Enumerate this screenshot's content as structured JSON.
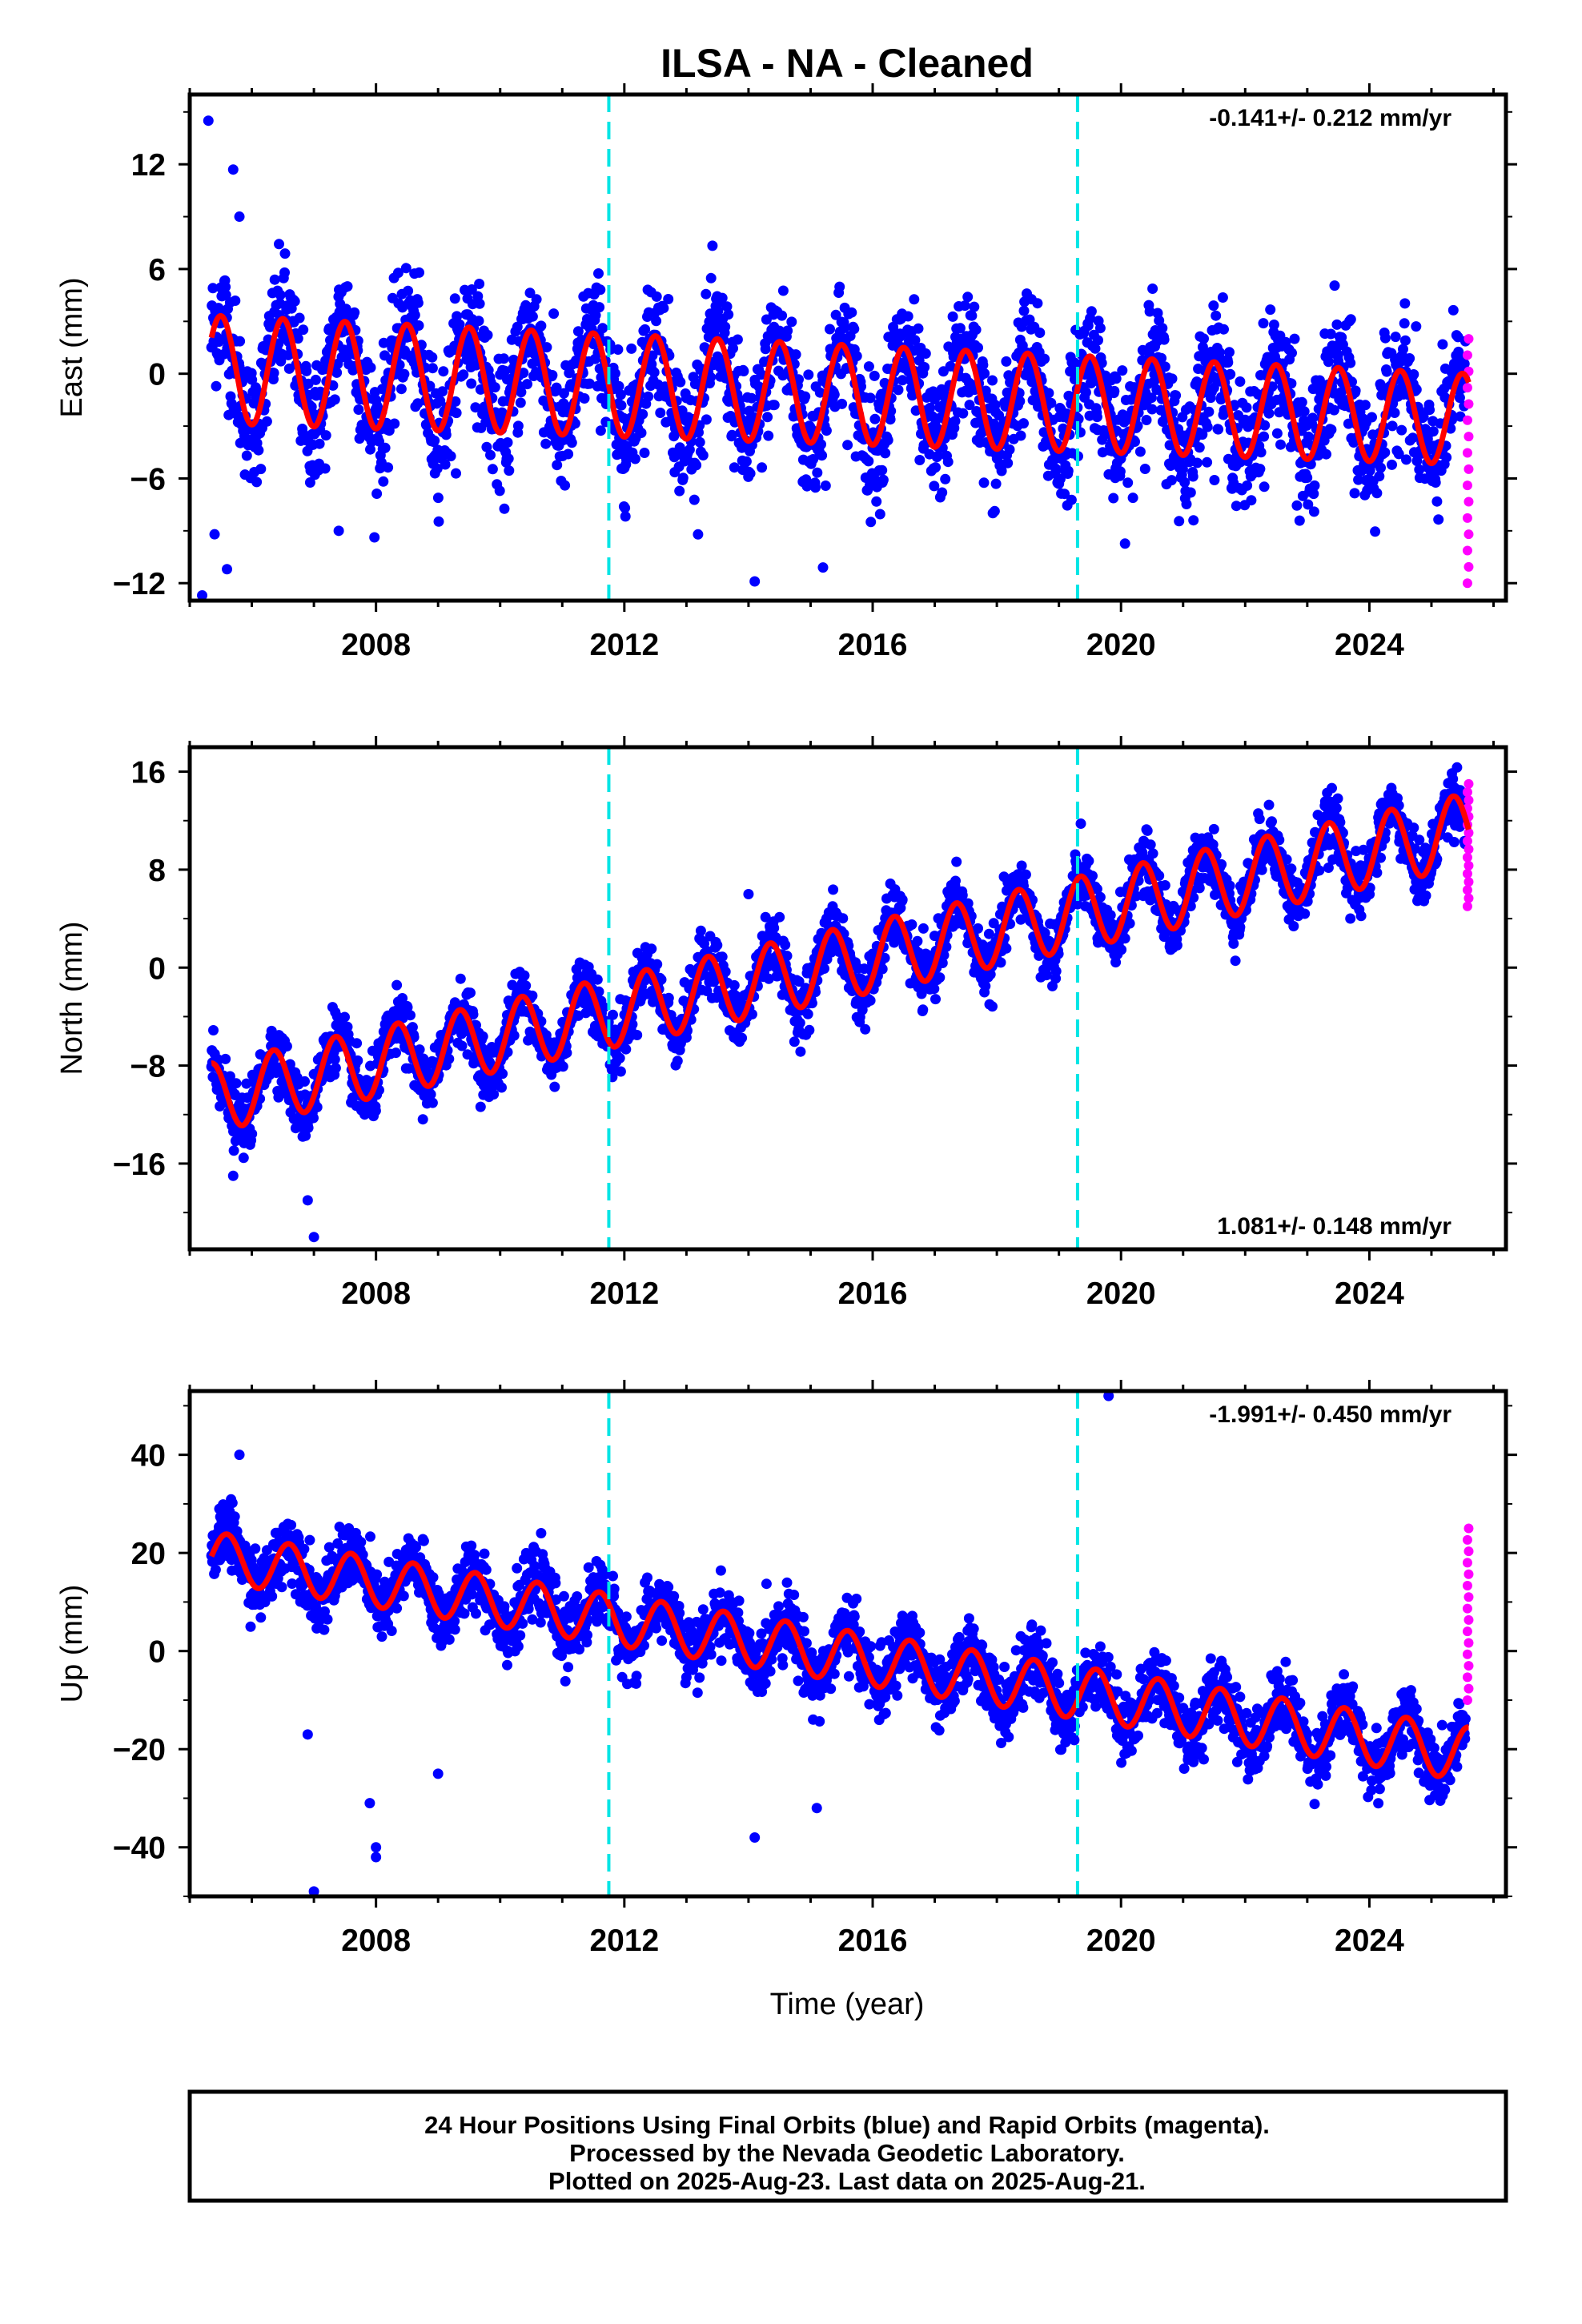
{
  "title": "ILSA  - NA - Cleaned",
  "xlabel": "Time (year)",
  "x_ticks": [
    "2008",
    "2012",
    "2016",
    "2020",
    "2024"
  ],
  "footer": [
    "24 Hour Positions Using Final Orbits (blue) and Rapid Orbits (magenta).",
    "Processed by the Nevada Geodetic Laboratory.",
    "Plotted on 2025-Aug-23. Last data on 2025-Aug-21."
  ],
  "colors": {
    "final": "#0000ff",
    "rapid": "#ff00ff",
    "model": "#ff0000",
    "offset": "#00e5e5"
  },
  "chart_data": [
    {
      "type": "scatter",
      "ylabel": "East (mm)",
      "rate": "-0.141+/- 0.212 mm/yr",
      "xlim": [
        2005.0,
        2026.2
      ],
      "ylim": [
        -13.0,
        16.0
      ],
      "yticks": [
        12,
        6,
        0,
        -6,
        -12
      ],
      "offset_lines": [
        2011.75,
        2019.3
      ],
      "model": {
        "slope": -0.141,
        "intercept": 0.3,
        "amp": 3.1,
        "amp_end": 2.6,
        "phase": 0.25
      },
      "scatter": 3.0,
      "outliers": [
        [
          2005.3,
          14.5
        ],
        [
          2005.7,
          11.7
        ],
        [
          2005.8,
          9.0
        ],
        [
          2005.2,
          -12.7
        ],
        [
          2005.4,
          -9.2
        ],
        [
          2005.6,
          -11.2
        ],
        [
          2007.4,
          -9.0
        ],
        [
          2014.1,
          -11.9
        ],
        [
          2015.2,
          -11.1
        ]
      ],
      "rapid_range": [
        -12.0,
        2.0
      ],
      "series": [
        {
          "name": "Final Orbits (blue)"
        },
        {
          "name": "Rapid Orbits (magenta)"
        }
      ]
    },
    {
      "type": "scatter",
      "ylabel": "North (mm)",
      "rate": "1.081+/- 0.148 mm/yr",
      "xlim": [
        2005.0,
        2026.2
      ],
      "ylim": [
        -23.0,
        18.0
      ],
      "yticks": [
        16,
        8,
        0,
        -8,
        -16
      ],
      "offset_lines": [
        2011.75,
        2019.3
      ],
      "model": {
        "slope": 1.081,
        "intercept": -11.0,
        "amp": 2.8,
        "amp_end": 3.0,
        "phase": 0.1
      },
      "scatter": 2.0,
      "outliers": [
        [
          2005.7,
          -17.0
        ],
        [
          2006.9,
          -19.0
        ],
        [
          2007.0,
          -22.0
        ],
        [
          2014.0,
          6.0
        ]
      ],
      "rapid_range": [
        5.0,
        15.0
      ],
      "series": [
        {
          "name": "Final Orbits (blue)"
        },
        {
          "name": "Rapid Orbits (magenta)"
        }
      ]
    },
    {
      "type": "scatter",
      "ylabel": "Up (mm)",
      "rate": "-1.991+/- 0.450 mm/yr",
      "xlim": [
        2005.0,
        2026.2
      ],
      "ylim": [
        -50.0,
        53.0
      ],
      "yticks": [
        40,
        20,
        0,
        -20,
        -40
      ],
      "offset_lines": [
        2011.75,
        2019.3
      ],
      "model": {
        "slope": -1.991,
        "intercept": 20.0,
        "amp": 5.0,
        "amp_end": 5.5,
        "phase": 0.35
      },
      "scatter": 5.5,
      "outliers": [
        [
          2005.8,
          40.0
        ],
        [
          2006.9,
          -17.0
        ],
        [
          2007.0,
          -49.0
        ],
        [
          2007.9,
          -31.0
        ],
        [
          2008.0,
          -40.0
        ],
        [
          2008.0,
          -42.0
        ],
        [
          2009.0,
          -25.0
        ],
        [
          2014.1,
          -38.0
        ],
        [
          2015.1,
          -32.0
        ],
        [
          2019.8,
          52.0
        ]
      ],
      "rapid_range": [
        -10.0,
        25.0
      ],
      "series": [
        {
          "name": "Final Orbits (blue)"
        },
        {
          "name": "Rapid Orbits (magenta)"
        }
      ]
    }
  ]
}
